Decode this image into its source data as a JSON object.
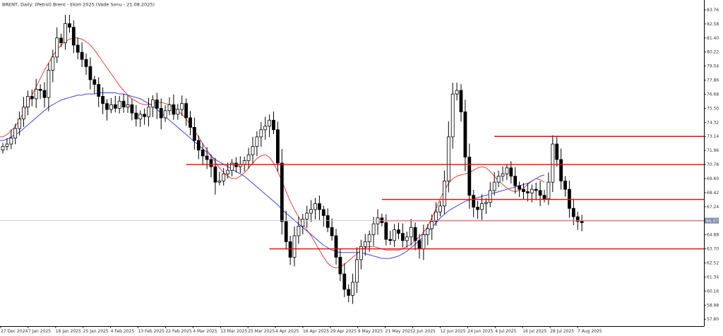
{
  "chart_data": {
    "type": "candlestick",
    "title": "BRENT, Daily:  (Petrol) Brent - Ekim 2025 (Vade Sonu - 21.08.2025)",
    "symbol": "BRENT",
    "timeframe": "Daily",
    "price_axis": {
      "ylim": [
        57.22,
        84.35
      ],
      "ticks": [
        "83.76",
        "82.58",
        "81.40",
        "80.22",
        "79.04",
        "77.86",
        "76.68",
        "75.50",
        "74.32",
        "73.14",
        "71.96",
        "70.78",
        "69.60",
        "68.42",
        "67.24",
        "66.06",
        "64.88",
        "63.70",
        "62.52",
        "61.34",
        "60.16",
        "58.98",
        "57.80"
      ]
    },
    "time_axis": {
      "labels": [
        "27 Dec 2024",
        "7 Jan 2025",
        "16 Jan 2025",
        "25 Jan 2025",
        "4 Feb 2025",
        "13 Feb 2025",
        "22 Feb 2025",
        "4 Mar 2025",
        "13 Mar 2025",
        "25 Mar 2025",
        "4 Apr 2025",
        "16 Apr 2025",
        "29 Apr 2025",
        "9 May 2025",
        "21 May 2025",
        "2 Jun 2025",
        "12 Jun 2025",
        "24 Jun 2025",
        "4 Jul 2025",
        "16 Jul 2025",
        "28 Jul 2025",
        "7 Aug 2025"
      ]
    },
    "current_price": {
      "value": 66.07,
      "label": "66.07",
      "line_color": "#c0c0c0",
      "tag_color": "#7a8aa8"
    },
    "candle_colors": {
      "bull_fill": "#ffffff",
      "bear_fill": "#000000",
      "border": "#000000"
    },
    "moving_averages": [
      {
        "color": "#e04040",
        "values": [
          73.1,
          73.3,
          73.6,
          74.0,
          74.5,
          75.2,
          75.9,
          76.6,
          77.3,
          78.0,
          78.7,
          79.3,
          79.9,
          80.4,
          80.8,
          81.1,
          81.3,
          81.4,
          81.4,
          81.3,
          81.1,
          80.8,
          80.4,
          79.9,
          79.4,
          78.9,
          78.4,
          77.9,
          77.4,
          77.0,
          76.6,
          76.3,
          76.1,
          75.9,
          75.8,
          75.8,
          75.9,
          76.0,
          76.0,
          75.9,
          75.8,
          75.6,
          75.3,
          75.0,
          74.6,
          74.1,
          73.6,
          73.1,
          72.5,
          72.0,
          71.5,
          71.0,
          70.5,
          70.1,
          69.8,
          69.6,
          69.6,
          69.8,
          70.1,
          70.5,
          70.9,
          71.3,
          71.5,
          71.6,
          71.4,
          70.9,
          70.2,
          69.4,
          68.5,
          67.7,
          67.0,
          66.4,
          65.8,
          65.3,
          64.8,
          64.2,
          63.6,
          63.0,
          62.5,
          62.2,
          62.1,
          62.2,
          62.4,
          62.7,
          63.0,
          63.3,
          63.6,
          63.8,
          63.9,
          63.9,
          63.8,
          63.7,
          63.6,
          63.6,
          63.6,
          63.6,
          63.7,
          63.9,
          64.1,
          64.4,
          64.7,
          65.1,
          65.6,
          66.3,
          67.1,
          67.9,
          68.6,
          69.2,
          69.6,
          69.8,
          69.9,
          70.0,
          70.1,
          70.3,
          70.5,
          70.6,
          70.5,
          70.2,
          69.8,
          69.4,
          69.1,
          68.8,
          68.6,
          68.5,
          68.6,
          68.8,
          69.1,
          69.4,
          69.6,
          69.5,
          69.3
        ]
      },
      {
        "color": "#4040e0",
        "values": [
          72.8,
          72.9,
          73.1,
          73.3,
          73.5,
          73.8,
          74.1,
          74.4,
          74.7,
          75.0,
          75.3,
          75.6,
          75.8,
          76.0,
          76.2,
          76.3,
          76.4,
          76.5,
          76.6,
          76.6,
          76.7,
          76.7,
          76.7,
          76.8,
          76.8,
          76.8,
          76.8,
          76.8,
          76.7,
          76.7,
          76.6,
          76.5,
          76.4,
          76.3,
          76.1,
          75.9,
          75.7,
          75.4,
          75.1,
          74.8,
          74.5,
          74.2,
          73.9,
          73.6,
          73.3,
          73.0,
          72.7,
          72.4,
          72.1,
          71.8,
          71.5,
          71.2,
          71.0,
          70.8,
          70.6,
          70.4,
          70.2,
          70.0,
          69.8,
          69.5,
          69.2,
          68.9,
          68.6,
          68.3,
          68.0,
          67.7,
          67.4,
          67.0,
          66.7,
          66.4,
          66.1,
          65.8,
          65.5,
          65.2,
          64.9,
          64.6,
          64.3,
          64.0,
          63.8,
          63.6,
          63.5,
          63.4,
          63.4,
          63.4,
          63.4,
          63.4,
          63.4,
          63.3,
          63.2,
          63.1,
          63.0,
          62.9,
          62.9,
          62.9,
          63.0,
          63.1,
          63.3,
          63.5,
          63.8,
          64.1,
          64.4,
          64.7,
          65.1,
          65.5,
          65.9,
          66.3,
          66.6,
          66.9,
          67.1,
          67.3,
          67.5,
          67.7,
          67.8,
          67.9,
          68.0,
          68.1,
          68.2,
          68.3,
          68.4,
          68.5,
          68.6,
          68.7,
          68.8,
          68.9,
          69.0,
          69.1,
          69.2,
          69.4,
          69.6,
          69.8,
          69.9
        ]
      }
    ],
    "levels": [
      {
        "price": 73.14,
        "start_index": 118,
        "color": "#ff0000"
      },
      {
        "price": 70.78,
        "start_index": 44,
        "color": "#ff0000"
      },
      {
        "price": 67.85,
        "start_index": 91,
        "color": "#ff0000"
      },
      {
        "price": 66.07,
        "start_index": 91,
        "color": "#ff0000"
      },
      {
        "price": 63.7,
        "start_index": 64,
        "color": "#ff0000"
      }
    ],
    "closes": [
      72.3,
      72.5,
      73.0,
      73.8,
      74.6,
      75.6,
      76.5,
      76.3,
      77.1,
      77.0,
      76.4,
      78.7,
      79.8,
      81.4,
      81.0,
      82.6,
      82.3,
      80.8,
      80.2,
      79.6,
      79.0,
      77.9,
      77.5,
      76.5,
      75.9,
      75.4,
      75.8,
      75.5,
      76.1,
      75.6,
      75.8,
      75.1,
      74.6,
      75.0,
      74.8,
      75.6,
      76.2,
      75.5,
      74.7,
      75.3,
      75.8,
      75.0,
      75.4,
      75.9,
      74.7,
      73.9,
      72.8,
      72.0,
      71.5,
      71.2,
      70.6,
      69.3,
      69.4,
      70.0,
      70.3,
      70.9,
      70.6,
      70.8,
      71.1,
      71.6,
      72.3,
      73.1,
      73.7,
      74.0,
      74.5,
      73.7,
      70.9,
      66.0,
      64.3,
      63.0,
      64.8,
      65.6,
      66.2,
      66.7,
      67.0,
      67.5,
      67.0,
      66.5,
      65.5,
      64.8,
      63.0,
      61.6,
      60.3,
      59.8,
      60.9,
      62.8,
      63.9,
      64.3,
      64.9,
      65.8,
      66.3,
      65.9,
      64.5,
      64.4,
      65.3,
      65.0,
      64.4,
      64.7,
      65.5,
      64.4,
      63.7,
      64.9,
      65.4,
      66.0,
      66.8,
      67.3,
      69.4,
      73.1,
      76.7,
      77.0,
      75.2,
      71.4,
      68.2,
      67.2,
      67.0,
      67.5,
      67.6,
      68.6,
      69.3,
      69.8,
      70.0,
      70.5,
      69.8,
      69.0,
      68.7,
      68.5,
      68.4,
      68.7,
      68.6,
      68.2,
      67.9,
      69.3,
      72.5,
      71.2,
      69.4,
      68.7,
      67.1,
      66.4,
      66.0,
      65.9
    ]
  }
}
